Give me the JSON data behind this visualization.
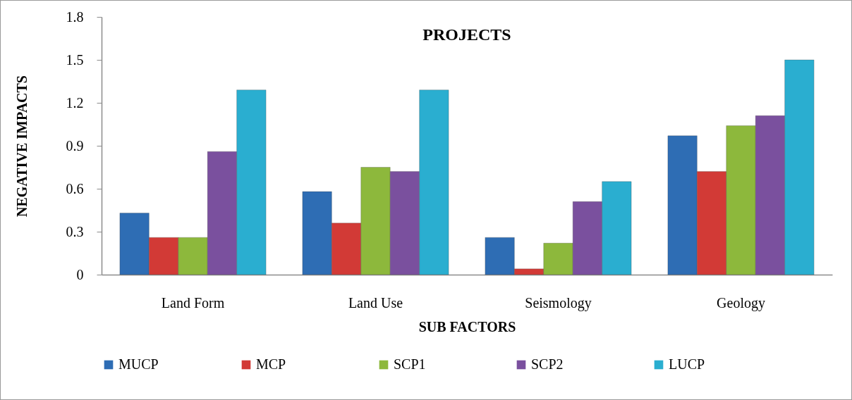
{
  "chart_data": {
    "type": "bar",
    "title": "PROJECTS",
    "xlabel": "SUB FACTORS",
    "ylabel": "NEGATIVE IMPACTS",
    "categories": [
      "Land Form",
      "Land Use",
      "Seismology",
      "Geology"
    ],
    "series": [
      {
        "name": "MUCP",
        "color": "#2e6db4",
        "values": [
          0.43,
          0.58,
          0.26,
          0.97
        ]
      },
      {
        "name": "MCP",
        "color": "#d23a36",
        "values": [
          0.26,
          0.36,
          0.04,
          0.72
        ]
      },
      {
        "name": "SCP1",
        "color": "#8db83c",
        "values": [
          0.26,
          0.75,
          0.22,
          1.04
        ]
      },
      {
        "name": "SCP2",
        "color": "#7a509e",
        "values": [
          0.86,
          0.72,
          0.51,
          1.11
        ]
      },
      {
        "name": "LUCP",
        "color": "#2aaed0",
        "values": [
          1.29,
          1.29,
          0.65,
          1.5
        ]
      }
    ],
    "ylim": [
      0,
      1.8
    ],
    "yticks": [
      0,
      0.3,
      0.6,
      0.9,
      1.2,
      1.5,
      1.8
    ],
    "legend": "bottom"
  }
}
